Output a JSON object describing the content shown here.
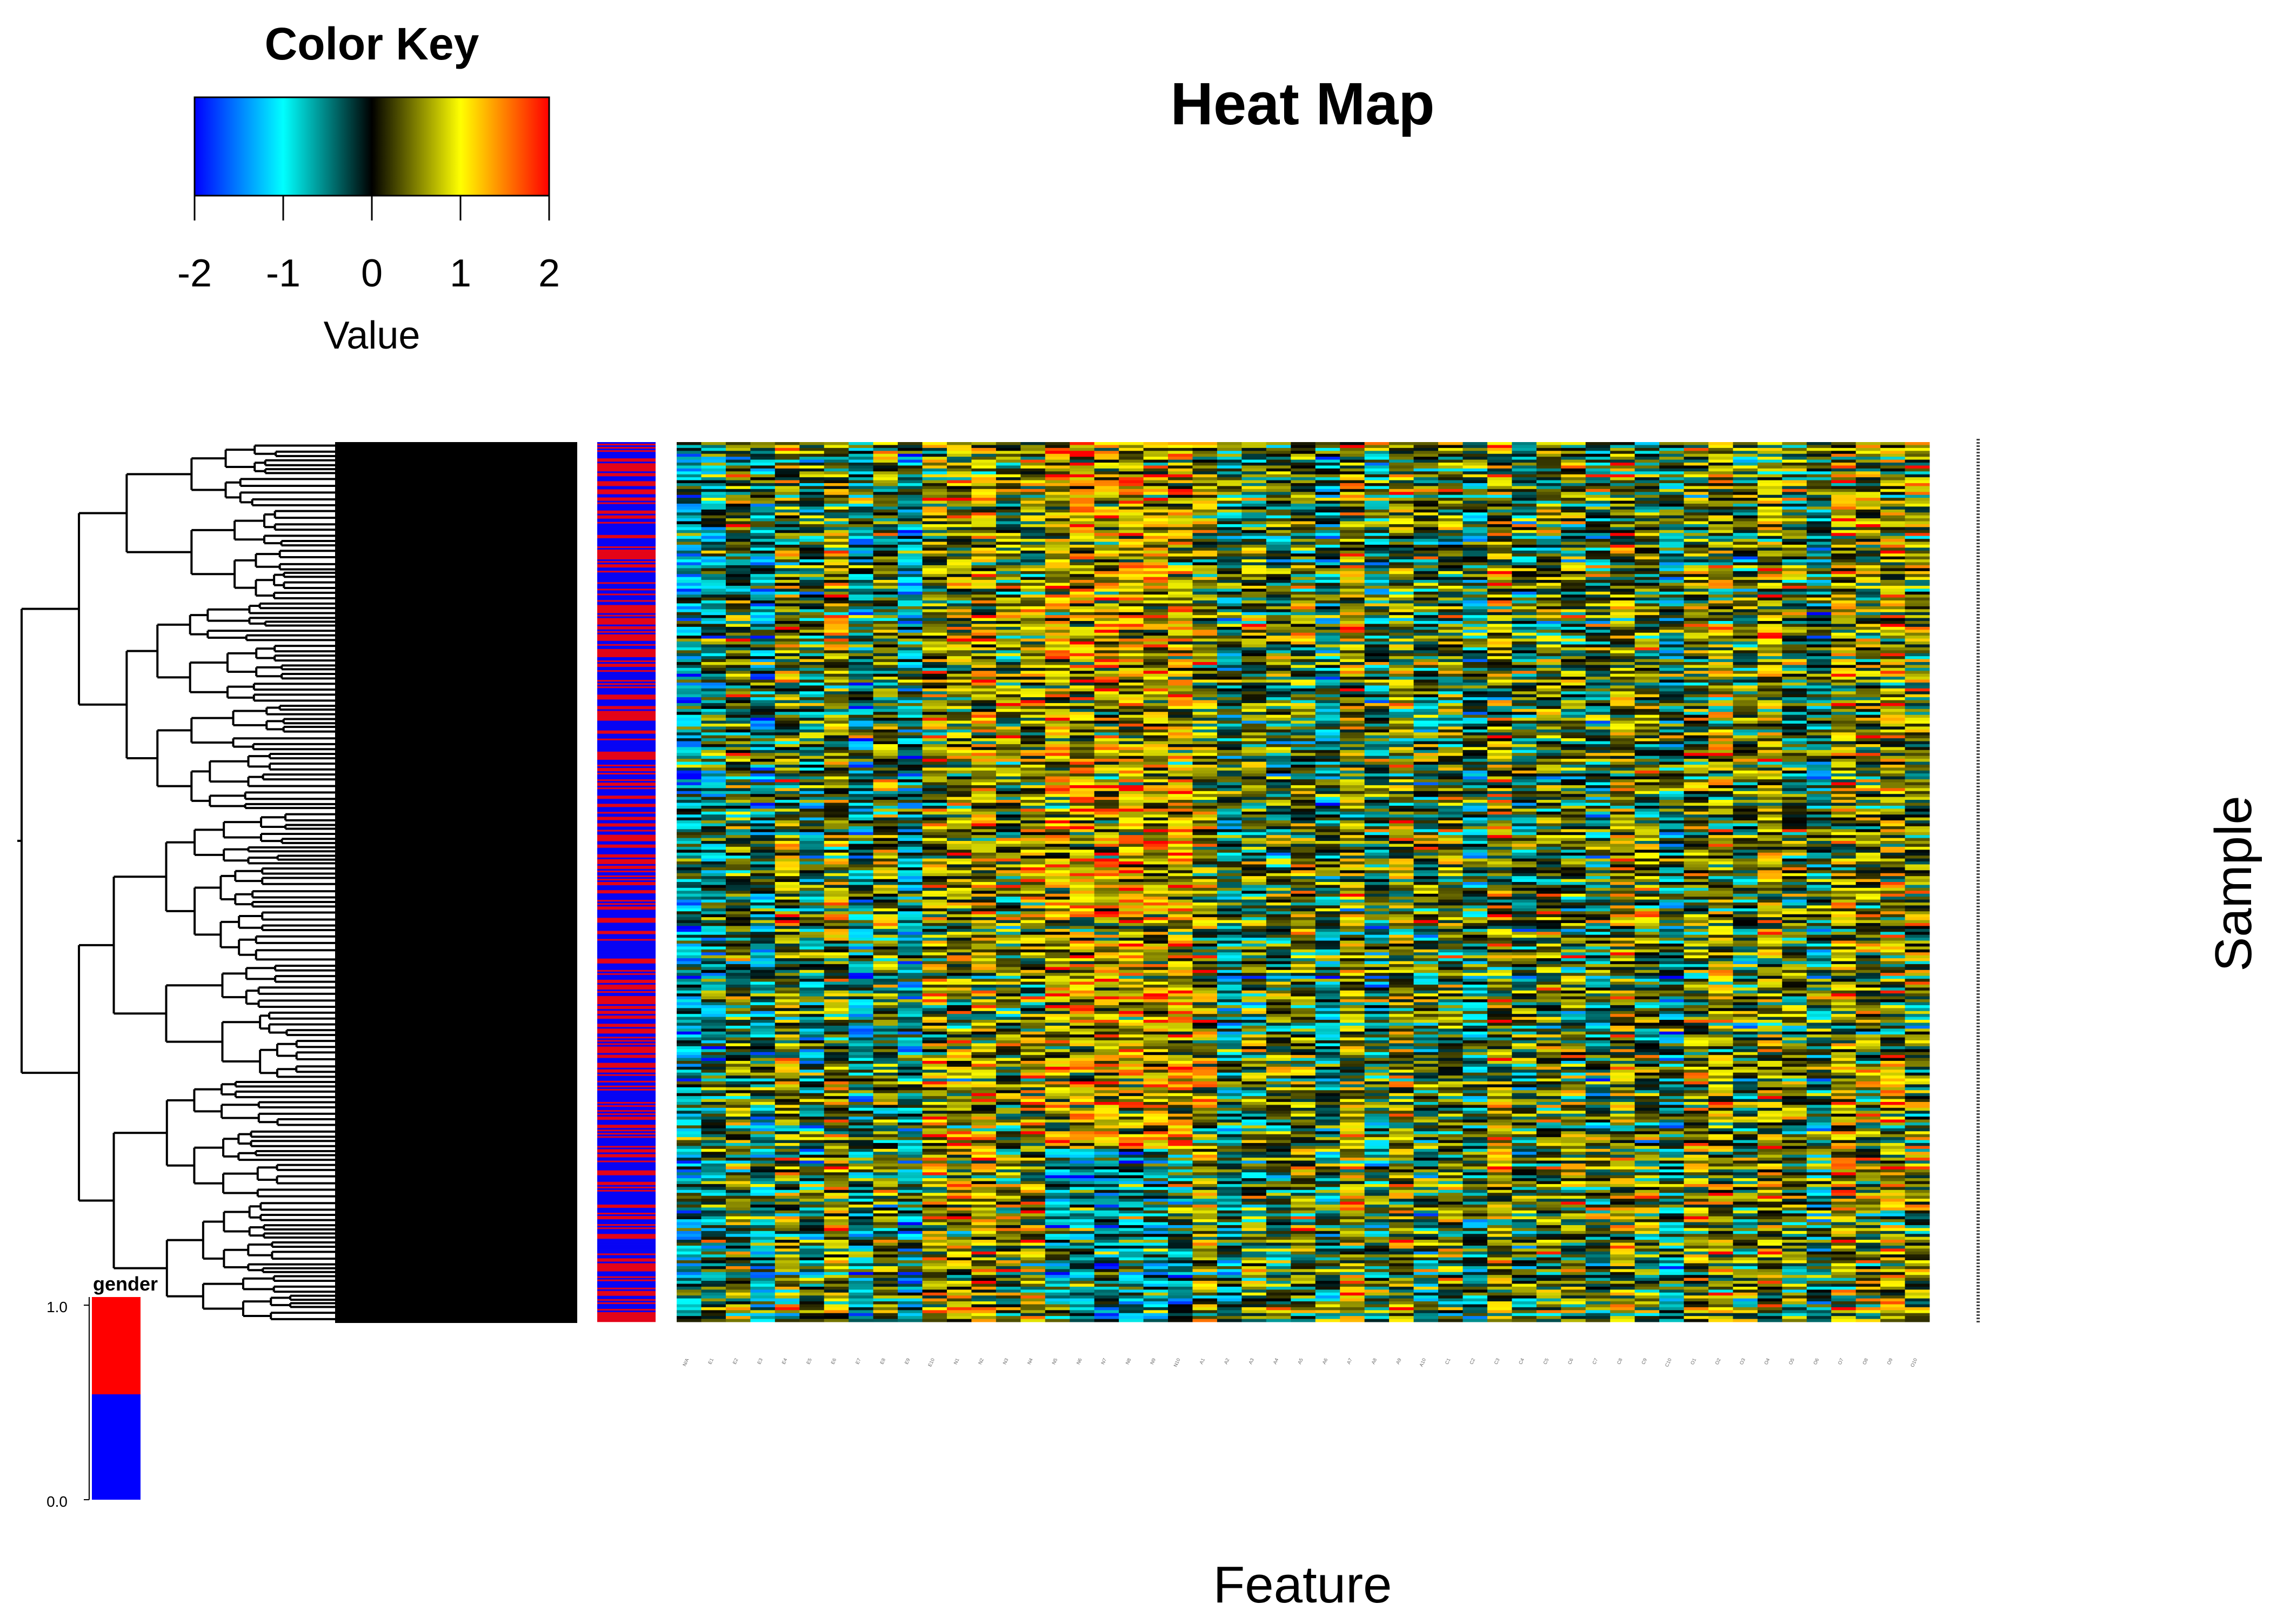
{
  "chart_data": {
    "type": "heatmap",
    "title": "Heat Map",
    "xlabel": "Feature",
    "ylabel": "Sample",
    "value_range": [
      -2,
      2
    ],
    "color_key": {
      "title": "Color Key",
      "label": "Value",
      "ticks": [
        -2,
        -1,
        0,
        1,
        2
      ],
      "colors": [
        "#0000ff",
        "#00ffff",
        "#000000",
        "#ffff00",
        "#ff0000"
      ]
    },
    "row_annotation": {
      "name": "gender",
      "colors": [
        "#ff0000",
        "#0000ff"
      ],
      "legend_ticks": [
        "1.0",
        "0.0"
      ],
      "split": 0.52
    },
    "dendrogram": "rows",
    "n_rows": 300,
    "columns": [
      "N/A",
      "E1",
      "E2",
      "E3",
      "E4",
      "E5",
      "E6",
      "E7",
      "E8",
      "E9",
      "E10",
      "N1",
      "N2",
      "N3",
      "N4",
      "N5",
      "N6",
      "N7",
      "N8",
      "N9",
      "N10",
      "A1",
      "A2",
      "A3",
      "A4",
      "A5",
      "A6",
      "A7",
      "A8",
      "A9",
      "A10",
      "C1",
      "C2",
      "C3",
      "C4",
      "C5",
      "C6",
      "C7",
      "C8",
      "C9",
      "C10",
      "O1",
      "O2",
      "O3",
      "O4",
      "O5",
      "O6",
      "O7",
      "O8",
      "O9",
      "O10"
    ],
    "column_means": [
      -0.6,
      -0.3,
      0.2,
      -0.5,
      0.4,
      -0.2,
      0.5,
      -0.4,
      0.3,
      -0.5,
      0.6,
      0.5,
      0.7,
      0.3,
      0.6,
      0.8,
      0.9,
      0.9,
      0.9,
      0.8,
      0.9,
      0.5,
      -0.3,
      0.2,
      0.1,
      0.3,
      -0.2,
      0.6,
      -0.1,
      0.4,
      0.0,
      0.3,
      -0.2,
      0.6,
      0.0,
      0.3,
      0.2,
      -0.1,
      0.5,
      0.2,
      -0.3,
      0.4,
      0.6,
      0.1,
      0.6,
      0.2,
      -0.2,
      0.7,
      0.3,
      0.6,
      0.4
    ]
  }
}
